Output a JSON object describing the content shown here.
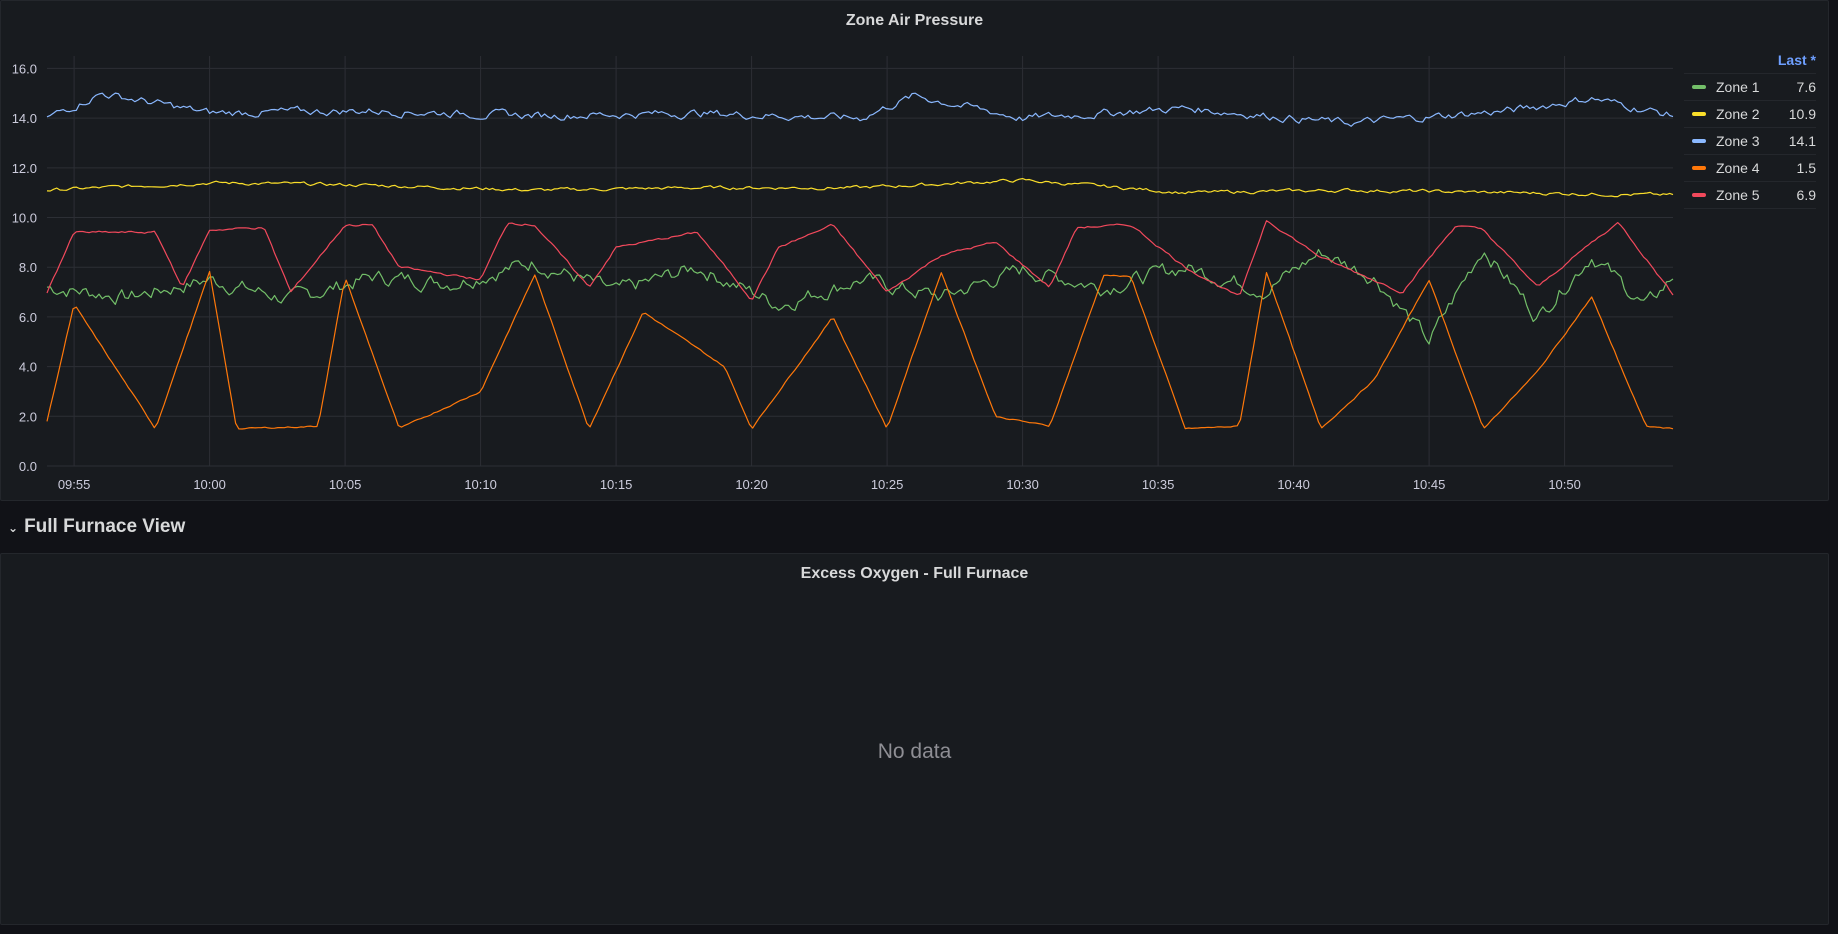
{
  "panels": {
    "pressure": {
      "title": "Zone Air Pressure"
    },
    "oxygen": {
      "title": "Excess Oxygen - Full Furnace",
      "empty_text": "No data"
    }
  },
  "row": {
    "title": "Full Furnace View"
  },
  "legend": {
    "header": "Last *",
    "items": [
      {
        "name": "Zone 1",
        "value": "7.6",
        "color": "#73bf69"
      },
      {
        "name": "Zone 2",
        "value": "10.9",
        "color": "#fade2a"
      },
      {
        "name": "Zone 3",
        "value": "14.1",
        "color": "#8ab8ff"
      },
      {
        "name": "Zone 4",
        "value": "1.5",
        "color": "#ff780a"
      },
      {
        "name": "Zone 5",
        "value": "6.9",
        "color": "#f2495c"
      }
    ]
  },
  "chart_data": {
    "type": "line",
    "title": "Zone Air Pressure",
    "y_ticks": [
      "0.0",
      "2.0",
      "4.0",
      "6.0",
      "8.0",
      "10.0",
      "12.0",
      "14.0",
      "16.0"
    ],
    "x_ticks": [
      "09:55",
      "10:00",
      "10:05",
      "10:10",
      "10:15",
      "10:20",
      "10:25",
      "10:30",
      "10:35",
      "10:40",
      "10:45",
      "10:50"
    ],
    "ylim": [
      0,
      16.5
    ],
    "xlim": [
      "09:54",
      "10:54"
    ],
    "grid": true,
    "legend_placement": "right",
    "series": [
      {
        "name": "Zone 1",
        "color": "#73bf69",
        "x": [
          "09:54",
          "09:57",
          "10:00",
          "10:03",
          "10:06",
          "10:09",
          "10:12",
          "10:15",
          "10:18",
          "10:21",
          "10:24",
          "10:27",
          "10:30",
          "10:33",
          "10:36",
          "10:39",
          "10:41",
          "10:43",
          "10:45",
          "10:47",
          "10:49",
          "10:51",
          "10:53",
          "10:54"
        ],
        "values": [
          7.2,
          6.8,
          7.5,
          6.7,
          7.6,
          7.4,
          8.2,
          7.0,
          8.0,
          6.5,
          7.5,
          6.8,
          7.9,
          7.2,
          8.0,
          7.1,
          8.6,
          7.6,
          5.0,
          8.8,
          6.0,
          8.5,
          6.4,
          7.6
        ]
      },
      {
        "name": "Zone 2",
        "color": "#fade2a",
        "x": [
          "09:54",
          "10:00",
          "10:06",
          "10:12",
          "10:18",
          "10:24",
          "10:30",
          "10:36",
          "10:42",
          "10:48",
          "10:54"
        ],
        "values": [
          11.1,
          11.4,
          11.3,
          11.1,
          11.2,
          11.2,
          11.5,
          11.0,
          11.1,
          11.0,
          10.9
        ]
      },
      {
        "name": "Zone 3",
        "color": "#8ab8ff",
        "x": [
          "09:54",
          "09:56",
          "10:00",
          "10:06",
          "10:12",
          "10:18",
          "10:24",
          "10:26",
          "10:30",
          "10:36",
          "10:42",
          "10:48",
          "10:51",
          "10:54"
        ],
        "values": [
          14.0,
          15.0,
          14.2,
          14.3,
          14.1,
          14.2,
          14.0,
          14.9,
          14.0,
          14.4,
          13.8,
          14.3,
          14.8,
          14.1
        ]
      },
      {
        "name": "Zone 4",
        "color": "#ff780a",
        "x": [
          "09:54",
          "09:55",
          "09:58",
          "10:00",
          "10:01",
          "10:04",
          "10:05",
          "10:07",
          "10:10",
          "10:12",
          "10:14",
          "10:16",
          "10:19",
          "10:20",
          "10:23",
          "10:25",
          "10:27",
          "10:29",
          "10:31",
          "10:33",
          "10:34",
          "10:36",
          "10:38",
          "10:39",
          "10:41",
          "10:43",
          "10:45",
          "10:47",
          "10:49",
          "10:51",
          "10:53",
          "10:54"
        ],
        "values": [
          1.8,
          6.5,
          1.5,
          7.8,
          1.5,
          1.6,
          7.6,
          1.5,
          3.0,
          7.7,
          1.5,
          6.2,
          4.0,
          1.5,
          6.0,
          1.5,
          7.8,
          2.0,
          1.6,
          7.7,
          7.6,
          1.5,
          1.6,
          7.8,
          1.5,
          3.5,
          7.5,
          1.5,
          3.8,
          6.8,
          1.6,
          1.5
        ]
      },
      {
        "name": "Zone 5",
        "color": "#f2495c",
        "x": [
          "09:54",
          "09:55",
          "09:58",
          "09:59",
          "10:00",
          "10:02",
          "10:03",
          "10:05",
          "10:06",
          "10:07",
          "10:10",
          "10:11",
          "10:12",
          "10:14",
          "10:15",
          "10:18",
          "10:20",
          "10:21",
          "10:23",
          "10:25",
          "10:27",
          "10:29",
          "10:31",
          "10:32",
          "10:34",
          "10:36",
          "10:38",
          "10:39",
          "10:41",
          "10:44",
          "10:46",
          "10:47",
          "10:49",
          "10:51",
          "10:52",
          "10:54"
        ],
        "values": [
          7.0,
          9.4,
          9.4,
          7.2,
          9.5,
          9.6,
          7.0,
          9.7,
          9.7,
          8.0,
          7.5,
          9.8,
          9.7,
          7.2,
          8.8,
          9.4,
          6.7,
          8.8,
          9.7,
          7.0,
          8.5,
          9.0,
          7.2,
          9.6,
          9.7,
          8.0,
          6.8,
          9.9,
          8.4,
          7.0,
          9.7,
          9.5,
          7.2,
          9.0,
          9.8,
          6.9
        ]
      }
    ]
  }
}
